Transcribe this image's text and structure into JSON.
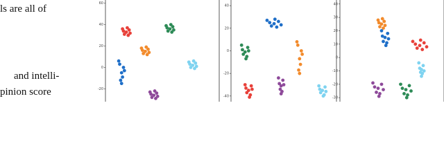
{
  "text": [
    "ls are all of",
    "and intelli-",
    "pinion score"
  ],
  "chart_data": [
    {
      "type": "scatter",
      "xlim": [
        -60,
        60
      ],
      "ylim": [
        -32,
        63
      ],
      "yticks": [
        60,
        40,
        20,
        0,
        -20
      ],
      "series": [
        {
          "color": "#e8413a",
          "x": [
            -38,
            -35,
            -41,
            -36,
            -40,
            -34,
            -42,
            -37
          ],
          "values": [
            33,
            35,
            34,
            30,
            31,
            32,
            36,
            37
          ]
        },
        {
          "color": "#2e8b57",
          "x": [
            8,
            11,
            5,
            10,
            6,
            12,
            4,
            9
          ],
          "values": [
            36,
            38,
            37,
            33,
            34,
            35,
            39,
            40
          ]
        },
        {
          "color": "#f28b2c",
          "x": [
            -18,
            -15,
            -21,
            -16,
            -20,
            -14,
            -22,
            -17
          ],
          "values": [
            15,
            17,
            16,
            12,
            13,
            14,
            18,
            19
          ]
        },
        {
          "color": "#1f6fc8",
          "x": [
            -43,
            -41,
            -45,
            -42,
            -44,
            -40,
            -46,
            -43
          ],
          "values": [
            -5,
            0,
            3,
            -9,
            -12,
            -3,
            6,
            -15
          ]
        },
        {
          "color": "#7fd3f0",
          "x": [
            32,
            35,
            29,
            34,
            30,
            36,
            28,
            33
          ],
          "values": [
            2,
            4,
            3,
            -1,
            0,
            1,
            5,
            6
          ]
        },
        {
          "color": "#8e4a9a",
          "x": [
            -9,
            -6,
            -12,
            -7,
            -11,
            -5,
            -13,
            -8
          ],
          "values": [
            -26,
            -24,
            -25,
            -29,
            -28,
            -27,
            -23,
            -22
          ]
        }
      ]
    },
    {
      "type": "scatter",
      "xlim": [
        -60,
        60
      ],
      "ylim": [
        -45,
        45
      ],
      "yticks": [
        40,
        20,
        0,
        -20,
        -40
      ],
      "series": [
        {
          "color": "#1f6fc8",
          "x": [
            -11,
            -6,
            -16,
            -8,
            -14,
            -3,
            -19,
            -10
          ],
          "values": [
            24,
            26,
            25,
            21,
            22,
            23,
            27,
            28
          ]
        },
        {
          "color": "#2e8b57",
          "x": [
            -44,
            -41,
            -47,
            -42,
            -46,
            -40,
            -48,
            -43
          ],
          "values": [
            -1,
            3,
            1,
            -5,
            -3,
            0,
            5,
            -7
          ]
        },
        {
          "color": "#f28b2c",
          "x": [
            18,
            20,
            16,
            19,
            17,
            21,
            15,
            18
          ],
          "values": [
            -7,
            0,
            5,
            -12,
            -17,
            -3,
            8,
            -20
          ]
        },
        {
          "color": "#e8413a",
          "x": [
            -40,
            -37,
            -43,
            -38,
            -42,
            -36,
            -44,
            -39
          ],
          "values": [
            -35,
            -31,
            -33,
            -39,
            -37,
            -34,
            -30,
            -41
          ]
        },
        {
          "color": "#8e4a9a",
          "x": [
            -3,
            -1,
            -5,
            -2,
            -4,
            0,
            -6,
            -3
          ],
          "values": [
            -31,
            -26,
            -29,
            -36,
            -34,
            -30,
            -24,
            -38
          ]
        },
        {
          "color": "#7fd3f0",
          "x": [
            44,
            47,
            41,
            46,
            42,
            48,
            40,
            45
          ],
          "values": [
            -35,
            -32,
            -34,
            -39,
            -37,
            -36,
            -31,
            -40
          ]
        }
      ]
    },
    {
      "type": "scatter",
      "xlim": [
        -60,
        60
      ],
      "ylim": [
        -33,
        43
      ],
      "yticks": [
        40,
        30,
        20,
        10,
        0,
        -10,
        -20,
        -30
      ],
      "series": [
        {
          "color": "#f28b2c",
          "x": [
            -12,
            -9,
            -15,
            -10,
            -14,
            -8,
            -16,
            -11
          ],
          "values": [
            25,
            27,
            26,
            22,
            23,
            24,
            28,
            29
          ]
        },
        {
          "color": "#1f6fc8",
          "x": [
            -8,
            -5,
            -11,
            -6,
            -10,
            -4,
            -12,
            -7
          ],
          "values": [
            15,
            18,
            16,
            11,
            12,
            14,
            20,
            9
          ]
        },
        {
          "color": "#e8413a",
          "x": [
            32,
            37,
            27,
            35,
            29,
            40,
            24,
            33
          ],
          "values": [
            9,
            11,
            10,
            6,
            7,
            8,
            12,
            13
          ]
        },
        {
          "color": "#7fd3f0",
          "x": [
            34,
            36,
            32,
            35,
            33,
            37,
            31,
            34
          ],
          "values": [
            -9,
            -6,
            -8,
            -12,
            -11,
            -10,
            -4,
            -14
          ]
        },
        {
          "color": "#8e4a9a",
          "x": [
            -16,
            -12,
            -20,
            -14,
            -18,
            -10,
            -22,
            -15
          ],
          "values": [
            -23,
            -20,
            -22,
            -27,
            -26,
            -24,
            -19,
            -29
          ]
        },
        {
          "color": "#2e8b57",
          "x": [
            16,
            20,
            12,
            18,
            14,
            22,
            10,
            17
          ],
          "values": [
            -24,
            -21,
            -23,
            -28,
            -27,
            -25,
            -20,
            -30
          ]
        }
      ]
    }
  ]
}
